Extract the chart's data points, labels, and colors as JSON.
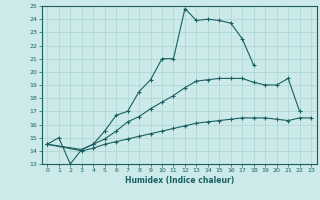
{
  "xlabel": "Humidex (Indice chaleur)",
  "xlim": [
    -0.5,
    23.5
  ],
  "ylim": [
    13,
    25
  ],
  "yticks": [
    13,
    14,
    15,
    16,
    17,
    18,
    19,
    20,
    21,
    22,
    23,
    24,
    25
  ],
  "xticks": [
    0,
    1,
    2,
    3,
    4,
    5,
    6,
    7,
    8,
    9,
    10,
    11,
    12,
    13,
    14,
    15,
    16,
    17,
    18,
    19,
    20,
    21,
    22,
    23
  ],
  "bg_color": "#cceaea",
  "line_color": "#1a6060",
  "grid_color": "#aad4d4",
  "line1_y": [
    14.5,
    15.0,
    13.0,
    14.1,
    14.5,
    15.5,
    16.7,
    17.0,
    18.5,
    19.4,
    21.0,
    21.0,
    24.8,
    23.9,
    24.0,
    23.9,
    23.7,
    22.5,
    20.5,
    null,
    null,
    null,
    null,
    null
  ],
  "line2_y": [
    14.5,
    null,
    null,
    14.1,
    14.5,
    14.9,
    15.5,
    16.2,
    16.6,
    17.2,
    17.7,
    18.2,
    18.8,
    19.3,
    19.4,
    19.5,
    19.5,
    19.5,
    19.2,
    19.0,
    19.0,
    19.5,
    17.0,
    null
  ],
  "line3_y": [
    14.5,
    null,
    null,
    14.0,
    14.2,
    14.5,
    14.7,
    14.9,
    15.1,
    15.3,
    15.5,
    15.7,
    15.9,
    16.1,
    16.2,
    16.3,
    16.4,
    16.5,
    16.5,
    16.5,
    16.4,
    16.3,
    16.5,
    16.5
  ]
}
